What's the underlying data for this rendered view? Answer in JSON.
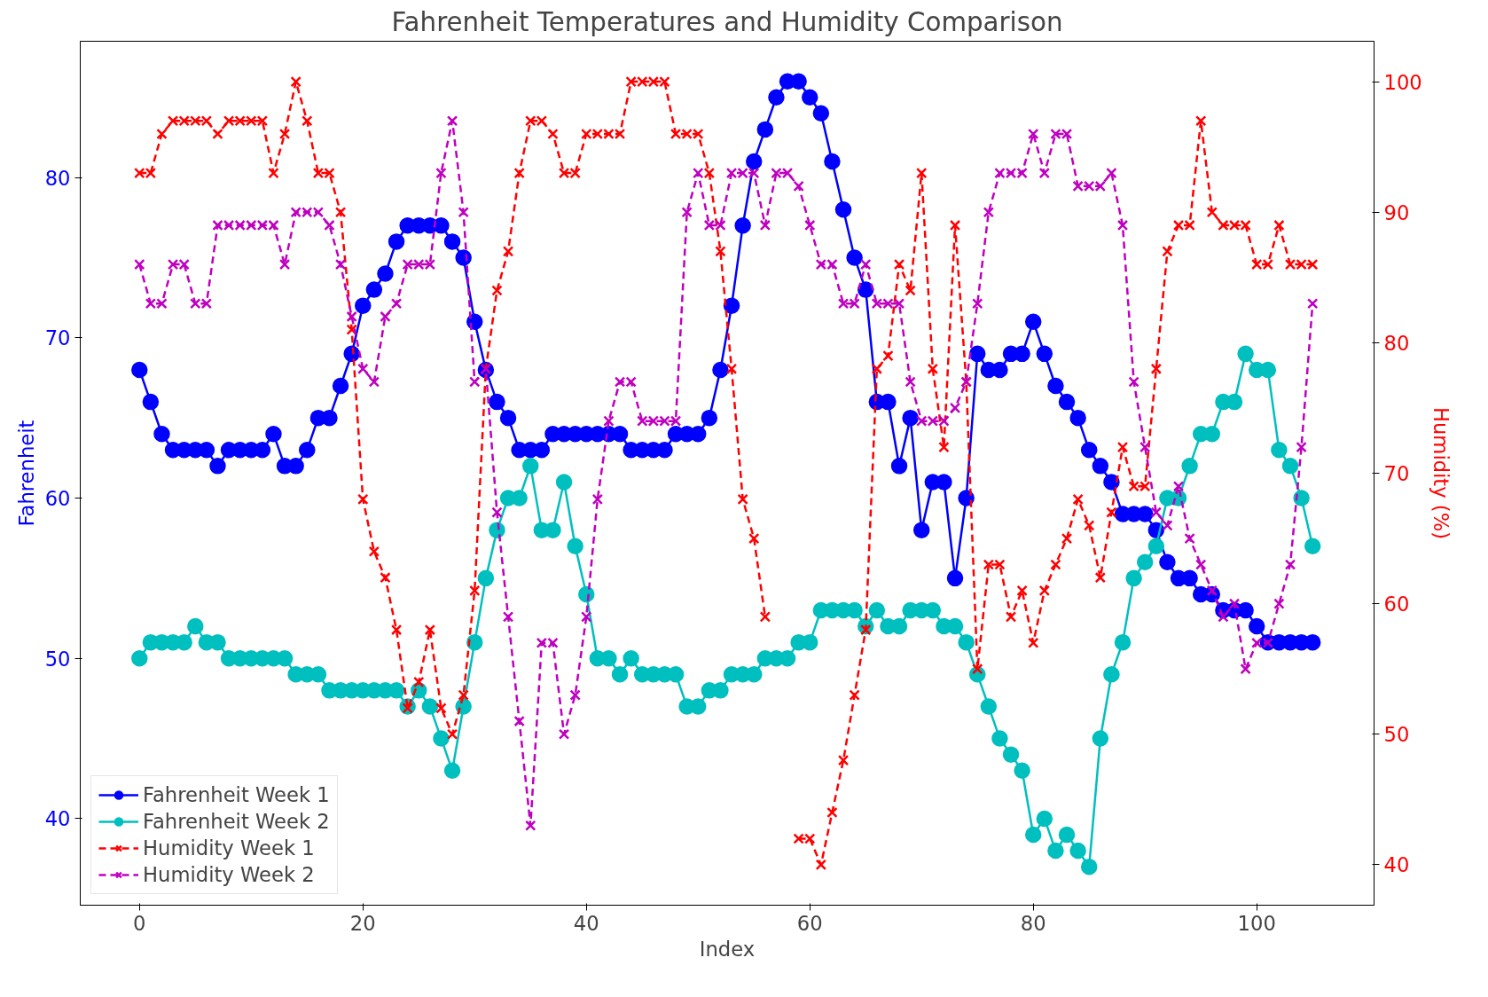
{
  "chart_data": {
    "type": "line",
    "title": "Fahrenheit Temperatures and Humidity Comparison",
    "xlabel": "Index",
    "ylabel": "Fahrenheit",
    "y2label": "Humidity (%)",
    "x": [
      0,
      1,
      2,
      3,
      4,
      5,
      6,
      7,
      8,
      9,
      10,
      11,
      12,
      13,
      14,
      15,
      16,
      17,
      18,
      19,
      20,
      21,
      22,
      23,
      24,
      25,
      26,
      27,
      28,
      29,
      30,
      31,
      32,
      33,
      34,
      35,
      36,
      37,
      38,
      39,
      40,
      41,
      42,
      43,
      44,
      45,
      46,
      47,
      48,
      49,
      50,
      51,
      52,
      53,
      54,
      55,
      56,
      57,
      58,
      59,
      60,
      61,
      62,
      63,
      64,
      65,
      66,
      67,
      68,
      69,
      70,
      71,
      72,
      73,
      74,
      75,
      76,
      77,
      78,
      79,
      80,
      81,
      82,
      83,
      84,
      85,
      86,
      87,
      88,
      89,
      90,
      91,
      92,
      93,
      94,
      95,
      96,
      97,
      98,
      99,
      100,
      101,
      102,
      103,
      104,
      105
    ],
    "xlim": [
      -5.3,
      110.5
    ],
    "xticks": [
      0,
      20,
      40,
      60,
      80,
      100
    ],
    "ylim": [
      34.6,
      88.5
    ],
    "yticks": [
      40,
      50,
      60,
      70,
      80
    ],
    "y2lim": [
      36.9,
      103.1
    ],
    "y2ticks": [
      40,
      50,
      60,
      70,
      80,
      90,
      100
    ],
    "legend": "bottom left",
    "grid": false,
    "series": [
      {
        "name": "Fahrenheit Week 1",
        "color": "#0000ff",
        "marker": "circle",
        "line_style": "solid",
        "values": [
          68,
          66,
          64,
          63,
          63,
          63,
          63,
          62,
          63,
          63,
          63,
          63,
          64,
          62,
          62,
          63,
          65,
          65,
          67,
          69,
          72,
          73,
          74,
          76,
          77,
          77,
          77,
          77,
          76,
          75,
          71,
          68,
          66,
          65,
          63,
          63,
          63,
          64,
          64,
          64,
          64,
          64,
          64,
          64,
          63,
          63,
          63,
          63,
          64,
          64,
          64,
          65,
          68,
          72,
          77,
          81,
          83,
          85,
          86,
          86,
          85,
          84,
          81,
          78,
          75,
          73,
          66,
          66,
          62,
          65,
          58,
          61,
          61,
          55,
          60,
          69,
          68,
          68,
          69,
          69,
          71,
          69,
          67,
          66,
          65,
          63,
          62,
          61,
          59,
          59,
          59,
          58,
          56,
          55,
          55,
          54,
          54,
          53,
          53,
          53,
          52,
          51,
          51,
          51,
          51,
          51
        ]
      },
      {
        "name": "Fahrenheit Week 2",
        "color": "#00bfbf",
        "marker": "circle",
        "line_style": "solid",
        "values": [
          50,
          51,
          51,
          51,
          51,
          52,
          51,
          51,
          50,
          50,
          50,
          50,
          50,
          50,
          49,
          49,
          49,
          48,
          48,
          48,
          48,
          48,
          48,
          48,
          47,
          48,
          47,
          45,
          43,
          47,
          51,
          55,
          58,
          60,
          60,
          62,
          58,
          58,
          61,
          57,
          54,
          50,
          50,
          49,
          50,
          49,
          49,
          49,
          49,
          47,
          47,
          48,
          48,
          49,
          49,
          49,
          50,
          50,
          50,
          51,
          51,
          53,
          53,
          53,
          53,
          52,
          53,
          52,
          52,
          53,
          53,
          53,
          52,
          52,
          51,
          49,
          47,
          45,
          44,
          43,
          39,
          40,
          38,
          39,
          38,
          37,
          45,
          49,
          51,
          55,
          56,
          57,
          60,
          60,
          62,
          64,
          64,
          66,
          66,
          69,
          68,
          68,
          63,
          62,
          60,
          57
        ]
      },
      {
        "name": "Humidity Week 1",
        "color": "#ff0000",
        "marker": "cross",
        "line_style": "dashed",
        "axis": "y2",
        "values": [
          93,
          93,
          96,
          97,
          97,
          97,
          97,
          96,
          97,
          97,
          97,
          97,
          93,
          96,
          100,
          97,
          93,
          93,
          90,
          81,
          68,
          64,
          62,
          58,
          52,
          54,
          58,
          52,
          50,
          53,
          61,
          78,
          84,
          87,
          93,
          97,
          97,
          96,
          93,
          93,
          96,
          96,
          96,
          96,
          100,
          100,
          100,
          100,
          96,
          96,
          96,
          93,
          87,
          78,
          68,
          65,
          59,
          null,
          null,
          42,
          42,
          40,
          44,
          48,
          53,
          58,
          78,
          79,
          86,
          84,
          93,
          78,
          72,
          89,
          77,
          55,
          63,
          63,
          59,
          61,
          57,
          61,
          63,
          65,
          68,
          66,
          62,
          67,
          72,
          69,
          69,
          78,
          87,
          89,
          89,
          97,
          90,
          89,
          89,
          89,
          86,
          86,
          89,
          86,
          86,
          86
        ]
      },
      {
        "name": "Humidity Week 2",
        "color": "#bf00bf",
        "marker": "cross",
        "line_style": "dashed",
        "axis": "y2",
        "values": [
          86,
          83,
          83,
          86,
          86,
          83,
          83,
          89,
          89,
          89,
          89,
          89,
          89,
          86,
          90,
          90,
          90,
          89,
          86,
          82,
          78,
          77,
          82,
          83,
          86,
          86,
          86,
          93,
          97,
          90,
          77,
          78,
          67,
          59,
          51,
          43,
          57,
          57,
          50,
          53,
          59,
          68,
          74,
          77,
          77,
          74,
          74,
          74,
          74,
          90,
          93,
          89,
          89,
          93,
          93,
          93,
          89,
          93,
          93,
          92,
          89,
          86,
          86,
          83,
          83,
          86,
          83,
          83,
          83,
          77,
          74,
          74,
          74,
          75,
          77,
          83,
          90,
          93,
          93,
          93,
          96,
          93,
          96,
          96,
          92,
          92,
          92,
          93,
          89,
          77,
          72,
          67,
          66,
          69,
          65,
          63,
          61,
          59,
          60,
          55,
          57,
          57,
          60,
          63,
          72,
          83
        ]
      }
    ]
  }
}
